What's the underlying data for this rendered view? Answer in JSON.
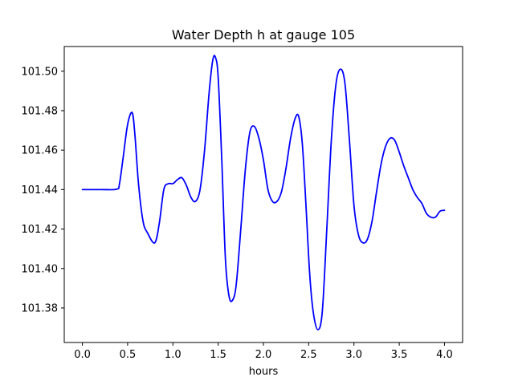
{
  "chart_data": {
    "type": "line",
    "title": "Water Depth h at gauge 105",
    "xlabel": "hours",
    "ylabel": "",
    "xlim": [
      -0.2,
      4.2
    ],
    "ylim": [
      101.3625,
      101.5125
    ],
    "grid": false,
    "x_ticks": [
      {
        "value": 0.0,
        "label": "0.0"
      },
      {
        "value": 0.5,
        "label": "0.5"
      },
      {
        "value": 1.0,
        "label": "1.0"
      },
      {
        "value": 1.5,
        "label": "1.5"
      },
      {
        "value": 2.0,
        "label": "2.0"
      },
      {
        "value": 2.5,
        "label": "2.5"
      },
      {
        "value": 3.0,
        "label": "3.0"
      },
      {
        "value": 3.5,
        "label": "3.5"
      },
      {
        "value": 4.0,
        "label": "4.0"
      }
    ],
    "y_ticks": [
      {
        "value": 101.38,
        "label": "101.38"
      },
      {
        "value": 101.4,
        "label": "101.40"
      },
      {
        "value": 101.42,
        "label": "101.42"
      },
      {
        "value": 101.44,
        "label": "101.44"
      },
      {
        "value": 101.46,
        "label": "101.46"
      },
      {
        "value": 101.48,
        "label": "101.48"
      },
      {
        "value": 101.5,
        "label": "101.50"
      }
    ],
    "series": [
      {
        "color": "#0000ff",
        "x": [
          0.0,
          0.2,
          0.38,
          0.41,
          0.45,
          0.5,
          0.55,
          0.58,
          0.62,
          0.67,
          0.72,
          0.8,
          0.85,
          0.9,
          0.95,
          1.0,
          1.05,
          1.1,
          1.15,
          1.2,
          1.25,
          1.3,
          1.35,
          1.4,
          1.44,
          1.47,
          1.5,
          1.54,
          1.58,
          1.62,
          1.66,
          1.7,
          1.75,
          1.8,
          1.85,
          1.9,
          1.95,
          2.0,
          2.05,
          2.1,
          2.15,
          2.2,
          2.25,
          2.3,
          2.35,
          2.39,
          2.43,
          2.47,
          2.51,
          2.55,
          2.6,
          2.65,
          2.7,
          2.75,
          2.8,
          2.85,
          2.9,
          2.95,
          3.0,
          3.05,
          3.1,
          3.15,
          3.2,
          3.25,
          3.3,
          3.35,
          3.4,
          3.45,
          3.5,
          3.55,
          3.6,
          3.65,
          3.7,
          3.75,
          3.8,
          3.85,
          3.9,
          3.95,
          4.0
        ],
        "y": [
          101.44,
          101.44,
          101.4402,
          101.443,
          101.456,
          101.473,
          101.479,
          101.468,
          101.443,
          101.424,
          101.418,
          101.413,
          101.423,
          101.44,
          101.443,
          101.443,
          101.445,
          101.446,
          101.442,
          101.436,
          101.434,
          101.44,
          101.46,
          101.489,
          101.5055,
          101.507,
          101.497,
          101.455,
          101.405,
          101.386,
          101.384,
          101.392,
          101.42,
          101.45,
          101.469,
          101.472,
          101.466,
          101.455,
          101.44,
          101.434,
          101.434,
          101.439,
          101.451,
          101.466,
          101.476,
          101.477,
          101.463,
          101.432,
          101.398,
          101.378,
          101.369,
          101.378,
          101.42,
          101.465,
          101.493,
          101.501,
          101.494,
          101.465,
          101.432,
          101.417,
          101.413,
          101.415,
          101.424,
          101.439,
          101.453,
          101.462,
          101.466,
          101.465,
          101.459,
          101.452,
          101.446,
          101.44,
          101.436,
          101.433,
          101.428,
          101.426,
          101.426,
          101.429,
          101.4295
        ]
      }
    ]
  }
}
